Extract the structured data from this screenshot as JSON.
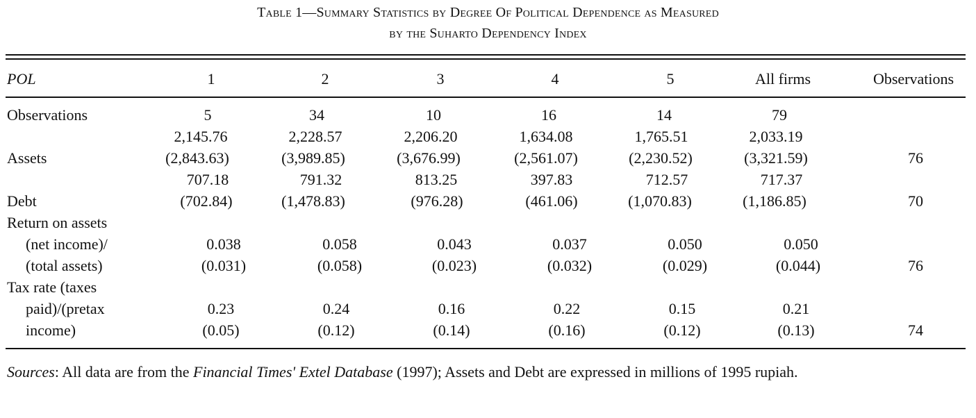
{
  "title": {
    "line1": "Table 1—Summary Statistics by Degree Of Political Dependence as Measured",
    "line2": "by the Suharto Dependency Index"
  },
  "header": {
    "pol": "POL",
    "columns": [
      "1",
      "2",
      "3",
      "4",
      "5",
      "All firms"
    ],
    "observations": "Observations"
  },
  "rows": {
    "observations": {
      "label": "Observations",
      "values": [
        "5",
        "34",
        "10",
        "16",
        "14",
        "79"
      ]
    },
    "assets": {
      "label": "Assets",
      "means": [
        "2,145.76",
        "2,228.57",
        "2,206.20",
        "1,634.08",
        "1,765.51",
        "2,033.19"
      ],
      "sds": [
        "(2,843.63)",
        "(3,989.85)",
        "(3,676.99)",
        "(2,561.07)",
        "(2,230.52)",
        "(3,321.59)"
      ],
      "obs": "76"
    },
    "debt": {
      "label": "Debt",
      "means": [
        "707.18",
        "791.32",
        "813.25",
        "397.83",
        "712.57",
        "717.37"
      ],
      "sds": [
        "(702.84)",
        "(1,478.83)",
        "(976.28)",
        "(461.06)",
        "(1,070.83)",
        "(1,186.85)"
      ],
      "obs": "70"
    },
    "roa": {
      "label_lines": [
        "Return on assets",
        "(net income)/",
        "(total assets)"
      ],
      "means": [
        "0.038",
        "0.058",
        "0.043",
        "0.037",
        "0.050",
        "0.050"
      ],
      "sds": [
        "(0.031)",
        "(0.058)",
        "(0.023)",
        "(0.032)",
        "(0.029)",
        "(0.044)"
      ],
      "obs": "76"
    },
    "tax": {
      "label_lines": [
        "Tax rate (taxes",
        "paid)/(pretax",
        "income)"
      ],
      "means": [
        "0.23",
        "0.24",
        "0.16",
        "0.22",
        "0.15",
        "0.21"
      ],
      "sds": [
        "(0.05)",
        "(0.12)",
        "(0.14)",
        "(0.16)",
        "(0.12)",
        "(0.13)"
      ],
      "obs": "74"
    }
  },
  "notes": {
    "sources_label": "Sources",
    "text_1": ": All data are from the ",
    "source_name": "Financial Times' Extel Database",
    "text_2": " (1997); Assets and Debt are expressed in millions of 1995 rupiah."
  }
}
